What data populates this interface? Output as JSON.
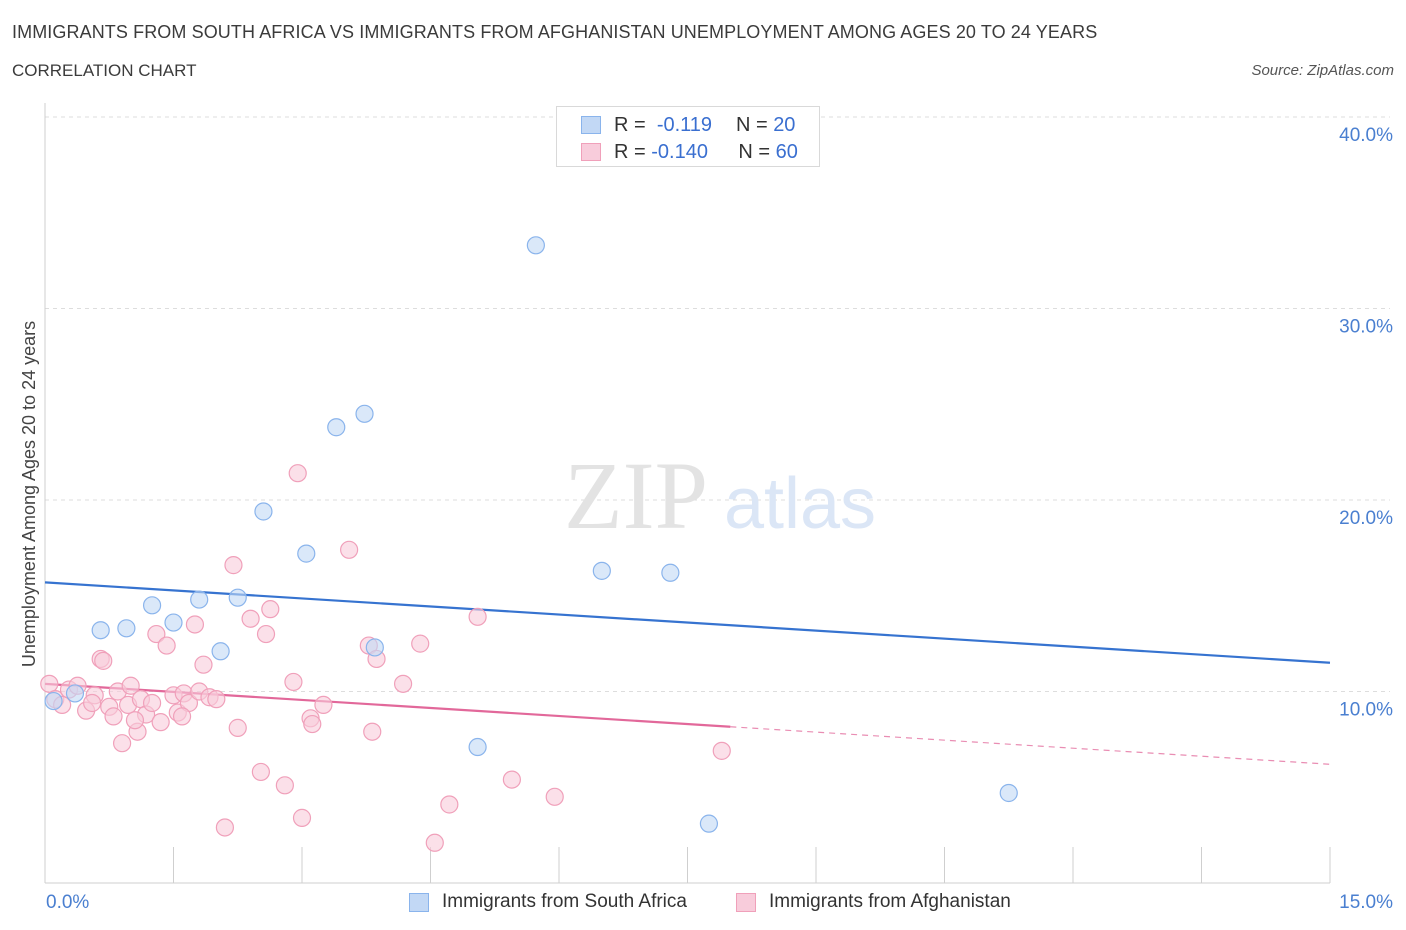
{
  "header": {
    "title": "IMMIGRANTS FROM SOUTH AFRICA VS IMMIGRANTS FROM AFGHANISTAN UNEMPLOYMENT AMONG AGES 20 TO 24 YEARS",
    "subtitle": "CORRELATION CHART",
    "source": "Source: ZipAtlas.com"
  },
  "legend": {
    "rows": [
      {
        "r_label": "R =",
        "r_value": "-0.119",
        "n_label": "N =",
        "n_value": "20"
      },
      {
        "r_label": "R =",
        "r_value": "-0.140",
        "n_label": "N =",
        "n_value": "60"
      }
    ]
  },
  "watermark": {
    "zip": "ZIP",
    "atlas": "atlas"
  },
  "colors": {
    "south_africa": "#8ab4ec",
    "south_africa_fill": "#c2d8f5",
    "south_africa_line": "#3673d0",
    "afghanistan": "#f0a0ba",
    "afghanistan_fill": "#f8ccdb",
    "afghanistan_line": "#e2689a",
    "tick_text": "#4a7fd0",
    "grid": "#dddddd"
  },
  "chart_data": {
    "type": "scatter",
    "title": "IMMIGRANTS FROM SOUTH AFRICA VS IMMIGRANTS FROM AFGHANISTAN UNEMPLOYMENT AMONG AGES 20 TO 24 YEARS",
    "xlabel": "",
    "ylabel": "Unemployment Among Ages 20 to 24 years",
    "xlim": [
      0,
      15
    ],
    "ylim": [
      0,
      40
    ],
    "x_tick_labels": [
      {
        "value": 0,
        "label": "0.0%"
      },
      {
        "value": 15,
        "label": "15.0%"
      }
    ],
    "y_tick_labels": [
      {
        "value": 10,
        "label": "10.0%"
      },
      {
        "value": 20,
        "label": "20.0%"
      },
      {
        "value": 30,
        "label": "30.0%"
      },
      {
        "value": 40,
        "label": "40.0%"
      }
    ],
    "grid": true,
    "series": [
      {
        "name": "Immigrants from South Africa",
        "r": -0.119,
        "n": 20,
        "trend": {
          "x0": 0,
          "y0": 15.7,
          "x1": 15,
          "y1": 11.5,
          "solid_to": 15
        },
        "points": [
          {
            "x": 0.1,
            "y": 9.5
          },
          {
            "x": 0.35,
            "y": 9.9
          },
          {
            "x": 0.65,
            "y": 13.2
          },
          {
            "x": 0.95,
            "y": 13.3
          },
          {
            "x": 1.25,
            "y": 14.5
          },
          {
            "x": 1.5,
            "y": 13.6
          },
          {
            "x": 1.8,
            "y": 14.8
          },
          {
            "x": 2.05,
            "y": 12.1
          },
          {
            "x": 2.25,
            "y": 14.9
          },
          {
            "x": 2.55,
            "y": 19.4
          },
          {
            "x": 3.05,
            "y": 17.2
          },
          {
            "x": 3.4,
            "y": 23.8
          },
          {
            "x": 3.73,
            "y": 24.5
          },
          {
            "x": 3.85,
            "y": 12.3
          },
          {
            "x": 5.05,
            "y": 7.1
          },
          {
            "x": 5.73,
            "y": 33.3
          },
          {
            "x": 6.5,
            "y": 16.3
          },
          {
            "x": 7.3,
            "y": 16.2
          },
          {
            "x": 7.75,
            "y": 3.1
          },
          {
            "x": 11.25,
            "y": 4.7
          }
        ]
      },
      {
        "name": "Immigrants from Afghanistan",
        "r": -0.14,
        "n": 60,
        "trend": {
          "x0": 0,
          "y0": 10.4,
          "x1": 15,
          "y1": 6.2,
          "solid_to": 8.0
        },
        "points": [
          {
            "x": 0.05,
            "y": 10.4
          },
          {
            "x": 0.12,
            "y": 9.6
          },
          {
            "x": 0.2,
            "y": 9.3
          },
          {
            "x": 0.28,
            "y": 10.1
          },
          {
            "x": 0.38,
            "y": 10.3
          },
          {
            "x": 0.48,
            "y": 9.0
          },
          {
            "x": 0.58,
            "y": 9.8
          },
          {
            "x": 0.65,
            "y": 11.7
          },
          {
            "x": 0.68,
            "y": 11.6
          },
          {
            "x": 0.75,
            "y": 9.2
          },
          {
            "x": 0.8,
            "y": 8.7
          },
          {
            "x": 0.85,
            "y": 10.0
          },
          {
            "x": 0.9,
            "y": 7.3
          },
          {
            "x": 0.97,
            "y": 9.3
          },
          {
            "x": 1.0,
            "y": 10.3
          },
          {
            "x": 1.08,
            "y": 7.9
          },
          {
            "x": 1.12,
            "y": 9.6
          },
          {
            "x": 1.18,
            "y": 8.8
          },
          {
            "x": 1.25,
            "y": 9.4
          },
          {
            "x": 1.3,
            "y": 13.0
          },
          {
            "x": 1.35,
            "y": 8.4
          },
          {
            "x": 1.42,
            "y": 12.4
          },
          {
            "x": 1.5,
            "y": 9.8
          },
          {
            "x": 1.55,
            "y": 8.9
          },
          {
            "x": 1.62,
            "y": 9.9
          },
          {
            "x": 1.68,
            "y": 9.4
          },
          {
            "x": 1.75,
            "y": 13.5
          },
          {
            "x": 1.8,
            "y": 10.0
          },
          {
            "x": 1.85,
            "y": 11.4
          },
          {
            "x": 1.92,
            "y": 9.7
          },
          {
            "x": 2.1,
            "y": 2.9
          },
          {
            "x": 2.2,
            "y": 16.6
          },
          {
            "x": 2.25,
            "y": 8.1
          },
          {
            "x": 2.4,
            "y": 13.8
          },
          {
            "x": 2.52,
            "y": 5.8
          },
          {
            "x": 2.58,
            "y": 13.0
          },
          {
            "x": 2.63,
            "y": 14.3
          },
          {
            "x": 2.8,
            "y": 5.1
          },
          {
            "x": 2.9,
            "y": 10.5
          },
          {
            "x": 2.95,
            "y": 21.4
          },
          {
            "x": 3.0,
            "y": 3.4
          },
          {
            "x": 3.1,
            "y": 8.6
          },
          {
            "x": 3.12,
            "y": 8.3
          },
          {
            "x": 3.25,
            "y": 9.3
          },
          {
            "x": 3.55,
            "y": 17.4
          },
          {
            "x": 3.78,
            "y": 12.4
          },
          {
            "x": 3.82,
            "y": 7.9
          },
          {
            "x": 3.87,
            "y": 11.7
          },
          {
            "x": 4.18,
            "y": 10.4
          },
          {
            "x": 4.38,
            "y": 12.5
          },
          {
            "x": 4.55,
            "y": 2.1
          },
          {
            "x": 4.72,
            "y": 4.1
          },
          {
            "x": 5.05,
            "y": 13.9
          },
          {
            "x": 5.45,
            "y": 5.4
          },
          {
            "x": 5.95,
            "y": 4.5
          },
          {
            "x": 7.9,
            "y": 6.9
          },
          {
            "x": 1.05,
            "y": 8.5
          },
          {
            "x": 0.55,
            "y": 9.4
          },
          {
            "x": 1.6,
            "y": 8.7
          },
          {
            "x": 2.0,
            "y": 9.6
          }
        ]
      }
    ],
    "legend_placement": "bottom-center"
  }
}
